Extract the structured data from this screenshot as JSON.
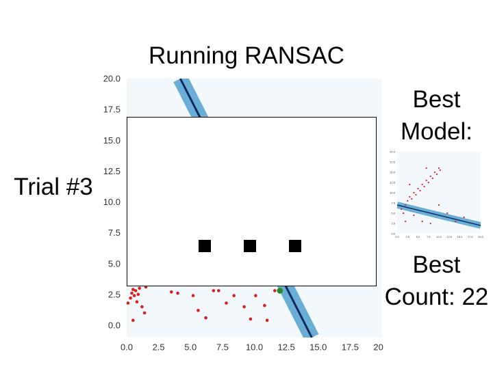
{
  "slide": {
    "title": "Running RANSAC",
    "trial_label": "Trial #3",
    "best_model_label": "Best Model:",
    "best_count_label": "Best Count: 22"
  },
  "colors": {
    "plot_background": "#f3f8fd",
    "point_color": "#dd1c1c",
    "band_color": "#6aaed6",
    "line_color": "#0d2a5c",
    "sample_point_color": "#2a8a2a"
  },
  "chart_data": [
    {
      "type": "scatter",
      "role": "current-trial",
      "xlim": [
        0,
        20
      ],
      "ylim": [
        -1,
        20
      ],
      "x_ticks": [
        "0.0",
        "2.5",
        "5.0",
        "7.5",
        "10.0",
        "12.5",
        "15.0",
        "17.5",
        "20.0"
      ],
      "y_ticks": [
        "0.0",
        "2.5",
        "5.0",
        "7.5",
        "10.0",
        "12.5",
        "15.0",
        "17.5",
        "20.0"
      ],
      "grid": false,
      "points": [
        [
          0.1,
          1.8
        ],
        [
          0.3,
          2.2
        ],
        [
          0.4,
          2.6
        ],
        [
          0.5,
          2.9
        ],
        [
          0.6,
          2.4
        ],
        [
          0.7,
          2.8
        ],
        [
          0.8,
          1.9
        ],
        [
          0.9,
          2.5
        ],
        [
          1.0,
          3.0
        ],
        [
          1.2,
          1.5
        ],
        [
          1.4,
          1.0
        ],
        [
          0.5,
          0.4
        ],
        [
          1.5,
          3.1
        ],
        [
          3.5,
          2.7
        ],
        [
          4.0,
          2.6
        ],
        [
          5.2,
          2.4
        ],
        [
          5.5,
          3.3
        ],
        [
          5.6,
          1.2
        ],
        [
          6.2,
          0.6
        ],
        [
          6.8,
          2.8
        ],
        [
          7.2,
          2.8
        ],
        [
          7.8,
          1.8
        ],
        [
          8.4,
          2.4
        ],
        [
          9.0,
          3.4
        ],
        [
          9.2,
          1.5
        ],
        [
          9.7,
          0.5
        ],
        [
          10.1,
          2.4
        ],
        [
          10.8,
          1.6
        ],
        [
          11.0,
          0.4
        ],
        [
          11.6,
          2.8
        ]
      ],
      "sample_points": [
        [
          12.0,
          2.8
        ]
      ],
      "model_line": [
        [
          4.2,
          20.0
        ],
        [
          14.5,
          -1.0
        ]
      ],
      "band_half_width": 0.6
    },
    {
      "type": "scatter",
      "role": "best-model-thumbnail",
      "xlim": [
        0,
        20
      ],
      "ylim": [
        0,
        20
      ],
      "y_ticks": [
        "20.0",
        "17.5",
        "15.0",
        "12.5",
        "10.0",
        "7.5",
        "5.0",
        "2.5",
        "0.0"
      ],
      "x_ticks": [
        "0.0",
        "2.5",
        "5.0",
        "7.5",
        "10.0",
        "12.5",
        "15.0",
        "17.5",
        "20.0"
      ],
      "grid": false,
      "points": [
        [
          1.0,
          6.0
        ],
        [
          1.5,
          5.0
        ],
        [
          2.0,
          7.0
        ],
        [
          2.5,
          8.0
        ],
        [
          3.0,
          9.0
        ],
        [
          3.5,
          8.5
        ],
        [
          4.0,
          10.0
        ],
        [
          4.5,
          9.5
        ],
        [
          5.0,
          11.0
        ],
        [
          5.5,
          10.5
        ],
        [
          6.0,
          12.0
        ],
        [
          6.5,
          11.5
        ],
        [
          7.0,
          13.0
        ],
        [
          7.5,
          12.5
        ],
        [
          8.0,
          14.0
        ],
        [
          8.5,
          13.5
        ],
        [
          9.0,
          15.0
        ],
        [
          9.5,
          14.5
        ],
        [
          10.0,
          16.0
        ],
        [
          10.3,
          15.5
        ],
        [
          2.0,
          3.0
        ],
        [
          4.0,
          4.5
        ],
        [
          6.0,
          3.0
        ],
        [
          8.0,
          2.5
        ],
        [
          10.0,
          7.0
        ],
        [
          12.0,
          5.0
        ],
        [
          14.0,
          3.0
        ],
        [
          16.0,
          4.0
        ],
        [
          3.0,
          12.0
        ],
        [
          7.0,
          16.0
        ]
      ],
      "model_line": [
        [
          0.0,
          7.0
        ],
        [
          20.0,
          2.0
        ]
      ],
      "band_half_width": 0.8
    }
  ]
}
